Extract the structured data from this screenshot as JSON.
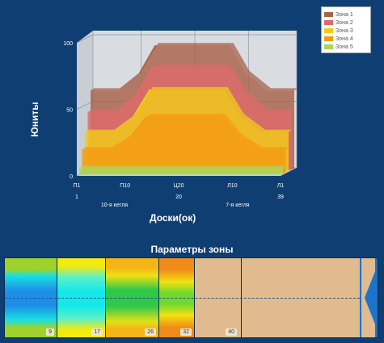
{
  "chart_data": {
    "type": "area",
    "ylabel": "Юниты",
    "xlabel": "Доски(ок)",
    "ylim": [
      0,
      100
    ],
    "yticks": [
      0,
      50,
      100
    ],
    "x_tick_labels": [
      "П1",
      "П10",
      "Ц20",
      "Л10",
      "Л1"
    ],
    "x_tick_numbers": [
      "1",
      "",
      "20",
      "",
      "39"
    ],
    "x_annotations": [
      "10-я кегля",
      "7-я кегля"
    ],
    "legend_placement": "top-right",
    "grid": true,
    "x": [
      1,
      6,
      10,
      13,
      20,
      27,
      30,
      34,
      39
    ],
    "series": [
      {
        "name": "Зона 1",
        "color": "#a8614a",
        "values": [
          59,
          59,
          72,
          93,
          93,
          93,
          72,
          59,
          59
        ]
      },
      {
        "name": "Зона 2",
        "color": "#de6a6a",
        "values": [
          44,
          44,
          58,
          78,
          78,
          78,
          58,
          44,
          44
        ]
      },
      {
        "name": "Зона 3",
        "color": "#f2cc1a",
        "values": [
          30,
          30,
          42,
          62,
          62,
          62,
          42,
          30,
          30
        ]
      },
      {
        "name": "Зона 4",
        "color": "#f59a12",
        "values": [
          18,
          18,
          28,
          43,
          43,
          43,
          28,
          18,
          18
        ]
      },
      {
        "name": "Зона 5",
        "color": "#a7d95b",
        "values": [
          5,
          5,
          5,
          5,
          5,
          5,
          5,
          5,
          5
        ]
      }
    ]
  },
  "zone_params": {
    "title": "Параметры зоны",
    "segments": [
      {
        "label": "9"
      },
      {
        "label": "17"
      },
      {
        "label": "26"
      },
      {
        "label": "32"
      },
      {
        "label": "40"
      }
    ]
  },
  "colors": {
    "background": "#0f3e72",
    "floor": "#c8cdd4",
    "wall": "#d9dde2",
    "zonebar_fill": "#e0bb8f",
    "end_marker": "#1c74c9"
  }
}
